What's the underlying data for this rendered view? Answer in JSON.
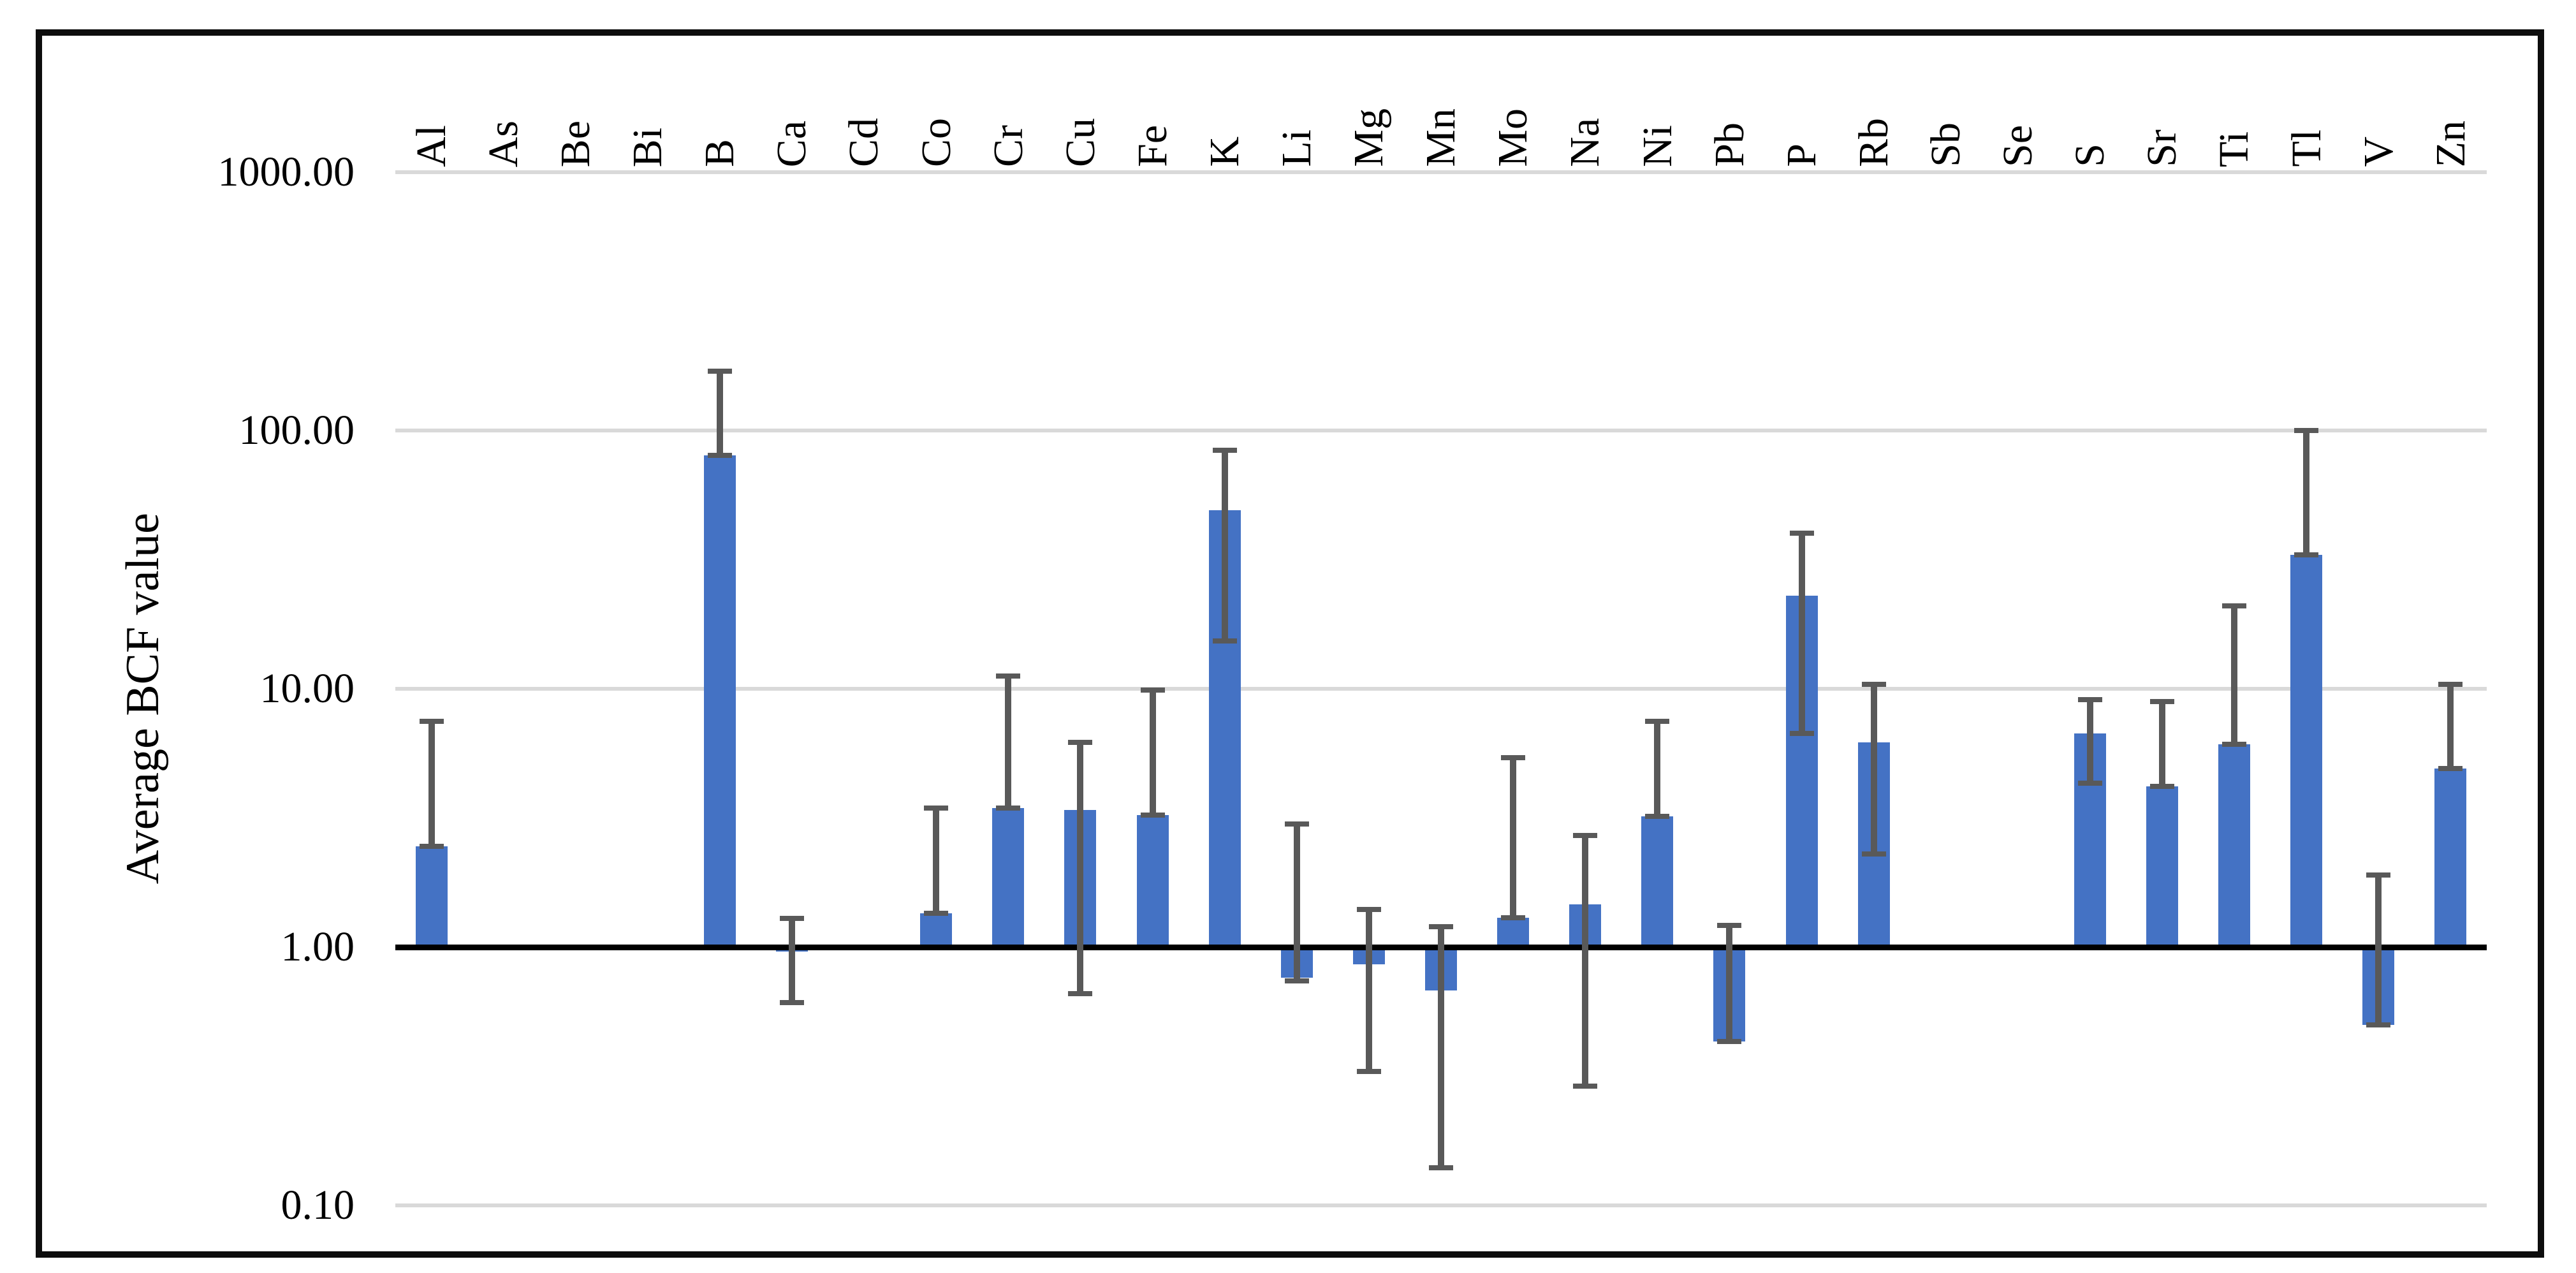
{
  "figure": {
    "y_axis_title": "Average BCF value",
    "colors": {
      "bar": "#4472C4",
      "error_bar": "#595959",
      "gridline": "#D9D9D9",
      "baseline": "#000000",
      "frame": "#0D0D0D",
      "background": "#FFFFFF"
    }
  },
  "chart_data": {
    "type": "bar",
    "title": "",
    "xlabel": "",
    "ylabel": "Average BCF value",
    "yscale": "log",
    "ylim": [
      0.07,
      1500
    ],
    "baseline": 1.0,
    "grid": "horizontal-only",
    "legend": "none",
    "y_ticks": [
      {
        "label": "1000.00",
        "value": 1000
      },
      {
        "label": "100.00",
        "value": 100
      },
      {
        "label": "10.00",
        "value": 10
      },
      {
        "label": "1.00",
        "value": 1
      },
      {
        "label": "0.10",
        "value": 0.1
      }
    ],
    "categories": [
      "Al",
      "As",
      "Be",
      "Bi",
      "B",
      "Ca",
      "Cd",
      "Co",
      "Cr",
      "Cu",
      "Fe",
      "K",
      "Li",
      "Mg",
      "Mn",
      "Mo",
      "Na",
      "Ni",
      "Pb",
      "P",
      "Rb",
      "Sb",
      "Se",
      "S",
      "Sr",
      "Ti",
      "Tl",
      "V",
      "Zn"
    ],
    "values": [
      2.45,
      null,
      null,
      null,
      80,
      0.96,
      null,
      1.35,
      3.45,
      3.4,
      3.25,
      49,
      0.76,
      0.86,
      0.68,
      1.3,
      1.46,
      3.2,
      0.43,
      23,
      6.2,
      null,
      null,
      6.7,
      4.2,
      6.1,
      33,
      0.5,
      4.9
    ],
    "error_low": [
      2.45,
      null,
      null,
      null,
      80,
      0.61,
      null,
      1.35,
      3.45,
      0.66,
      3.25,
      15.3,
      0.74,
      0.33,
      0.14,
      1.3,
      0.29,
      3.2,
      0.43,
      6.7,
      2.3,
      null,
      null,
      4.3,
      4.2,
      6.1,
      33,
      0.5,
      4.9
    ],
    "error_high": [
      7.5,
      null,
      null,
      null,
      170,
      1.29,
      null,
      3.45,
      11.2,
      6.2,
      9.9,
      84,
      3.0,
      1.4,
      1.2,
      5.4,
      2.7,
      7.5,
      1.21,
      40,
      10.4,
      null,
      null,
      9.1,
      8.9,
      21,
      100,
      1.9,
      10.4
    ]
  }
}
